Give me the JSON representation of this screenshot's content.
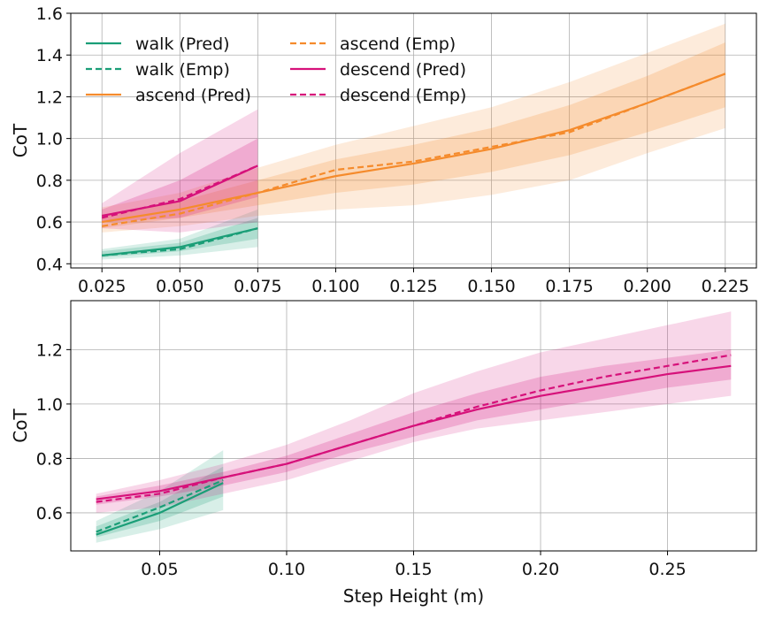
{
  "chart_data": [
    {
      "type": "line",
      "xlim": [
        0.015,
        0.235
      ],
      "ylim": [
        0.38,
        1.6
      ],
      "xticks": [
        0.025,
        0.05,
        0.075,
        0.1,
        0.125,
        0.15,
        0.175,
        0.2,
        0.225
      ],
      "xtick_labels": [
        "0.025",
        "0.050",
        "0.075",
        "0.100",
        "0.125",
        "0.150",
        "0.175",
        "0.200",
        "0.225"
      ],
      "yticks": [
        0.4,
        0.6,
        0.8,
        1.0,
        1.2,
        1.4,
        1.6
      ],
      "ytick_labels": [
        "0.4",
        "0.6",
        "0.8",
        "1.0",
        "1.2",
        "1.4",
        "1.6"
      ],
      "xlabel": "",
      "ylabel": "CoT",
      "grid": true,
      "legend": {
        "location": "top-left",
        "columns": [
          [
            "walk      (Pred)",
            "walk      (Emp)",
            "ascend (Pred)"
          ],
          [
            "ascend   (Emp)",
            "descend (Pred)",
            "descend (Emp)"
          ]
        ]
      },
      "series": [
        {
          "name": "walk (Pred)",
          "color": "#1a9e77",
          "dash": "solid",
          "x": [
            0.025,
            0.05,
            0.075
          ],
          "y": [
            0.44,
            0.48,
            0.57
          ],
          "band_outer": {
            "lower": [
              0.42,
              0.44,
              0.48
            ],
            "upper": [
              0.47,
              0.52,
              0.66
            ]
          },
          "band_inner": {
            "lower": [
              0.43,
              0.46,
              0.52
            ],
            "upper": [
              0.46,
              0.5,
              0.62
            ]
          }
        },
        {
          "name": "walk (Emp)",
          "color": "#1a9e77",
          "dash": "dashed",
          "x": [
            0.025,
            0.05,
            0.075
          ],
          "y": [
            0.44,
            0.47,
            0.57
          ]
        },
        {
          "name": "ascend (Pred)",
          "color": "#f58b2c",
          "dash": "solid",
          "x": [
            0.025,
            0.05,
            0.075,
            0.1,
            0.125,
            0.15,
            0.175,
            0.2,
            0.225
          ],
          "y": [
            0.6,
            0.66,
            0.74,
            0.82,
            0.88,
            0.95,
            1.04,
            1.17,
            1.31
          ],
          "band_outer": {
            "lower": [
              0.55,
              0.58,
              0.63,
              0.66,
              0.68,
              0.73,
              0.8,
              0.93,
              1.05
            ],
            "upper": [
              0.67,
              0.74,
              0.86,
              0.97,
              1.06,
              1.15,
              1.27,
              1.41,
              1.55
            ]
          },
          "band_inner": {
            "lower": [
              0.57,
              0.62,
              0.68,
              0.74,
              0.78,
              0.84,
              0.92,
              1.03,
              1.15
            ],
            "upper": [
              0.63,
              0.7,
              0.8,
              0.9,
              0.97,
              1.05,
              1.16,
              1.3,
              1.46
            ]
          }
        },
        {
          "name": "ascend (Emp)",
          "color": "#f58b2c",
          "dash": "dashed",
          "x": [
            0.025,
            0.05,
            0.075,
            0.1,
            0.125,
            0.15,
            0.175,
            0.2,
            0.225
          ],
          "y": [
            0.58,
            0.64,
            0.74,
            0.85,
            0.89,
            0.96,
            1.03,
            1.17,
            1.31
          ]
        },
        {
          "name": "descend (Pred)",
          "color": "#d6117a",
          "dash": "solid",
          "x": [
            0.025,
            0.05,
            0.075
          ],
          "y": [
            0.63,
            0.7,
            0.87
          ],
          "band_outer": {
            "lower": [
              0.57,
              0.55,
              0.6
            ],
            "upper": [
              0.69,
              0.93,
              1.14
            ]
          },
          "band_inner": {
            "lower": [
              0.6,
              0.62,
              0.72
            ],
            "upper": [
              0.66,
              0.8,
              1.0
            ]
          }
        },
        {
          "name": "descend (Emp)",
          "color": "#d6117a",
          "dash": "dashed",
          "x": [
            0.025,
            0.05,
            0.075
          ],
          "y": [
            0.62,
            0.71,
            0.87
          ]
        }
      ]
    },
    {
      "type": "line",
      "xlim": [
        0.015,
        0.285
      ],
      "ylim": [
        0.46,
        1.38
      ],
      "xticks": [
        0.05,
        0.1,
        0.15,
        0.2,
        0.25
      ],
      "xtick_labels": [
        "0.05",
        "0.10",
        "0.15",
        "0.20",
        "0.25"
      ],
      "yticks": [
        0.6,
        0.8,
        1.0,
        1.2
      ],
      "ytick_labels": [
        "0.6",
        "0.8",
        "1.0",
        "1.2"
      ],
      "xlabel": "Step Height (m)",
      "ylabel": "CoT",
      "grid": true,
      "series": [
        {
          "name": "walk (Pred)",
          "color": "#1a9e77",
          "dash": "solid",
          "x": [
            0.025,
            0.05,
            0.075
          ],
          "y": [
            0.52,
            0.6,
            0.71
          ],
          "band_outer": {
            "lower": [
              0.49,
              0.54,
              0.61
            ],
            "upper": [
              0.57,
              0.68,
              0.83
            ]
          },
          "band_inner": {
            "lower": [
              0.51,
              0.57,
              0.66
            ],
            "upper": [
              0.55,
              0.64,
              0.77
            ]
          }
        },
        {
          "name": "walk (Emp)",
          "color": "#1a9e77",
          "dash": "dashed",
          "x": [
            0.025,
            0.05,
            0.075
          ],
          "y": [
            0.53,
            0.62,
            0.72
          ]
        },
        {
          "name": "descend (Pred)",
          "color": "#d6117a",
          "dash": "solid",
          "x": [
            0.025,
            0.05,
            0.075,
            0.1,
            0.125,
            0.15,
            0.175,
            0.2,
            0.225,
            0.25,
            0.275
          ],
          "y": [
            0.65,
            0.68,
            0.73,
            0.78,
            0.85,
            0.92,
            0.98,
            1.03,
            1.07,
            1.11,
            1.14
          ],
          "band_outer": {
            "lower": [
              0.6,
              0.62,
              0.67,
              0.72,
              0.79,
              0.86,
              0.91,
              0.94,
              0.97,
              1.0,
              1.03
            ],
            "upper": [
              0.67,
              0.72,
              0.78,
              0.85,
              0.94,
              1.04,
              1.12,
              1.19,
              1.24,
              1.29,
              1.34
            ]
          },
          "band_inner": {
            "lower": [
              0.63,
              0.66,
              0.7,
              0.75,
              0.82,
              0.88,
              0.94,
              0.98,
              1.02,
              1.06,
              1.09
            ],
            "upper": [
              0.66,
              0.7,
              0.75,
              0.81,
              0.89,
              0.97,
              1.04,
              1.1,
              1.14,
              1.17,
              1.2
            ]
          }
        },
        {
          "name": "descend (Emp)",
          "color": "#d6117a",
          "dash": "dashed",
          "x": [
            0.025,
            0.05,
            0.075,
            0.1,
            0.125,
            0.15,
            0.175,
            0.2,
            0.225,
            0.25,
            0.275
          ],
          "y": [
            0.64,
            0.67,
            0.73,
            0.78,
            0.85,
            0.92,
            0.99,
            1.05,
            1.1,
            1.14,
            1.18
          ]
        }
      ]
    }
  ]
}
